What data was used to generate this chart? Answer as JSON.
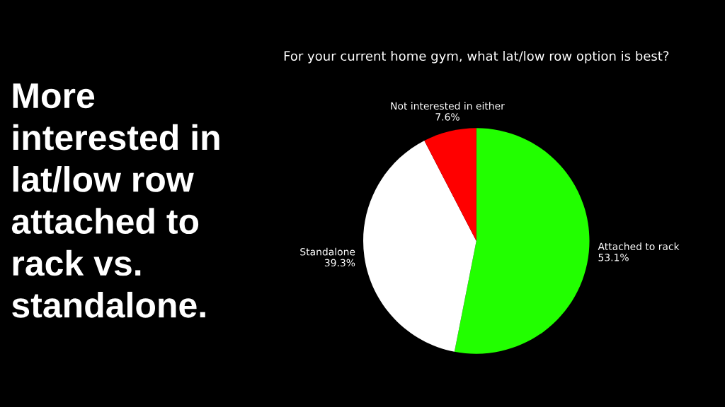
{
  "chart_data": {
    "type": "pie",
    "title": "For your current home gym, what lat/low row option is best?",
    "categories": [
      "Attached to rack",
      "Standalone",
      "Not interested in either"
    ],
    "values": [
      53.1,
      39.3,
      7.6
    ],
    "value_labels": [
      "53.1%",
      "39.3%",
      "7.6%"
    ],
    "colors": [
      "#22ff00",
      "#ffffff",
      "#ff0000"
    ],
    "annotations": [
      "More\ninterested in\nlat/low row\nattached to\nrack vs.\nstandalone."
    ]
  }
}
